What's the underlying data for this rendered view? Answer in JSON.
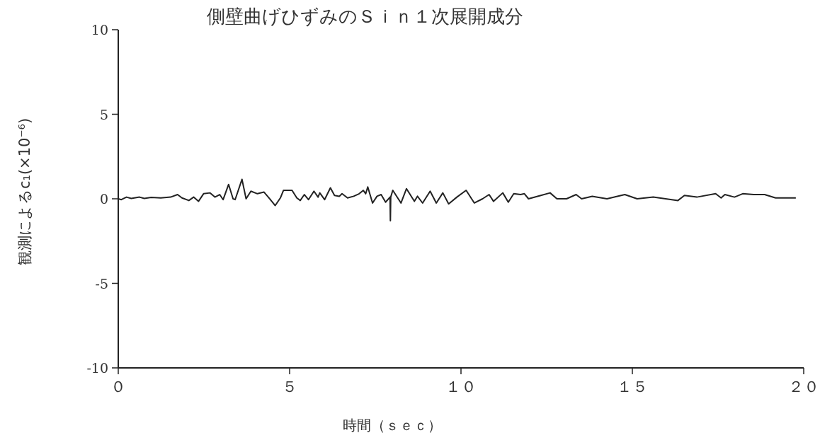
{
  "chart_data": {
    "type": "line",
    "title": "側壁曲げひずみのＳｉｎ１次展開成分",
    "xlabel": "時間（ｓｅｃ）",
    "ylabel": "観測によるc₁(×10⁻⁶)",
    "xlim": [
      0,
      20
    ],
    "ylim": [
      -10,
      10
    ],
    "xticks": [
      {
        "value": 0,
        "label": "０"
      },
      {
        "value": 5,
        "label": "５"
      },
      {
        "value": 10,
        "label": "１０"
      },
      {
        "value": 15,
        "label": "１５"
      },
      {
        "value": 20,
        "label": "２０"
      }
    ],
    "yticks": [
      -10,
      -5,
      0,
      5,
      10
    ],
    "series": [
      {
        "color": "#222222",
        "x": [
          0,
          0.09,
          0.24,
          0.38,
          0.62,
          0.76,
          0.96,
          1.24,
          1.53,
          1.73,
          1.86,
          2.06,
          2.2,
          2.34,
          2.49,
          2.68,
          2.82,
          2.96,
          3.06,
          3.22,
          3.35,
          3.41,
          3.61,
          3.73,
          3.87,
          4.06,
          4.25,
          4.4,
          4.58,
          4.73,
          4.82,
          5.07,
          5.21,
          5.31,
          5.43,
          5.55,
          5.71,
          5.83,
          5.88,
          6.02,
          6.19,
          6.31,
          6.45,
          6.53,
          6.69,
          6.87,
          7.03,
          7.15,
          7.22,
          7.28,
          7.42,
          7.55,
          7.67,
          7.8,
          7.93,
          7.94,
          7.95,
          8.01,
          8.25,
          8.41,
          8.64,
          8.73,
          8.88,
          9.1,
          9.28,
          9.47,
          9.64,
          9.88,
          10.15,
          10.39,
          10.63,
          10.82,
          10.95,
          11.22,
          11.38,
          11.54,
          11.74,
          11.85,
          11.97,
          12.33,
          12.6,
          12.8,
          13.08,
          13.36,
          13.52,
          13.83,
          14.26,
          14.78,
          15.14,
          15.61,
          16.33,
          16.52,
          16.88,
          17.43,
          17.59,
          17.7,
          17.98,
          18.22,
          18.54,
          18.86,
          19.18,
          19.77
        ],
        "values": [
          0,
          -0.05,
          0.1,
          0.02,
          0.1,
          0.02,
          0.08,
          0.05,
          0.1,
          0.25,
          0.05,
          -0.1,
          0.1,
          -0.15,
          0.3,
          0.35,
          0.1,
          0.25,
          -0.05,
          0.85,
          0,
          -0.05,
          1.15,
          0,
          0.45,
          0.3,
          0.4,
          0.05,
          -0.4,
          0.05,
          0.5,
          0.5,
          0.05,
          -0.1,
          0.25,
          -0.05,
          0.45,
          0.1,
          0.35,
          -0.05,
          0.65,
          0.2,
          0.15,
          0.3,
          0.05,
          0.15,
          0.3,
          0.5,
          0.3,
          0.7,
          -0.25,
          0.15,
          0.25,
          -0.2,
          0.1,
          -1.3,
          0.1,
          0.5,
          -0.25,
          0.6,
          -0.15,
          0.15,
          -0.25,
          0.45,
          -0.25,
          0.35,
          -0.3,
          0.1,
          0.5,
          -0.25,
          0,
          0.25,
          -0.15,
          0.35,
          -0.2,
          0.3,
          0.25,
          0.3,
          0,
          0.2,
          0.35,
          0,
          0,
          0.25,
          0,
          0.15,
          0,
          0.25,
          0,
          0.1,
          -0.1,
          0.2,
          0.1,
          0.3,
          0.05,
          0.25,
          0.1,
          0.3,
          0.25,
          0.25,
          0.05,
          0.05
        ]
      }
    ]
  }
}
